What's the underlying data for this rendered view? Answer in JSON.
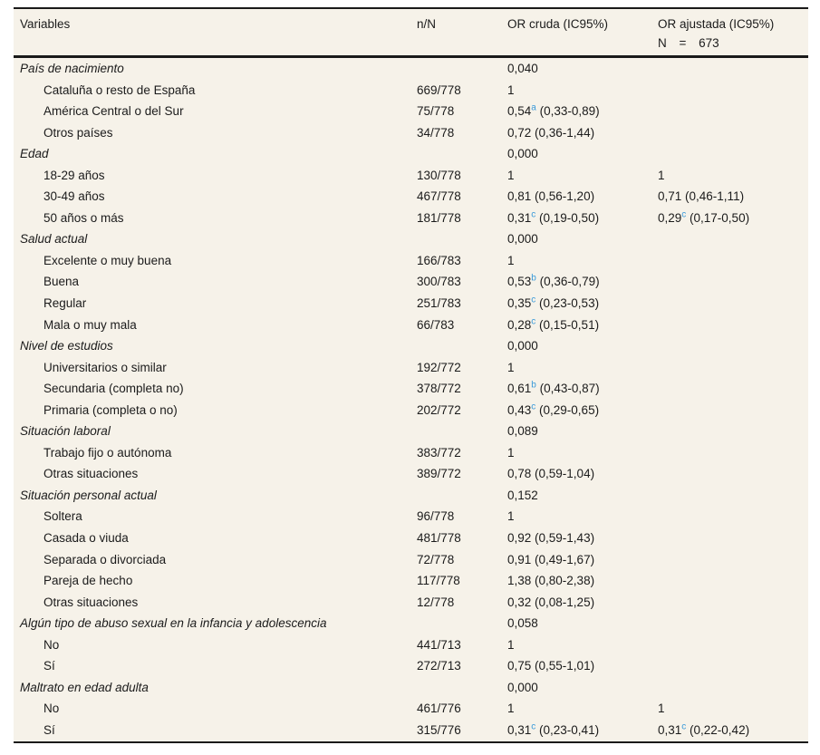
{
  "table": {
    "background": "#f6f2e9",
    "rule_color": "#1a1a1a",
    "text_color": "#1b1b1b",
    "superscript_color": "#3a9ad9",
    "header": {
      "variables": "Variables",
      "n_over_N": "n/N",
      "or_cruda": "OR cruda (IC95%)",
      "or_ajustada_line1": "OR ajustada (IC95%)",
      "or_ajustada_line2": "N = 673"
    },
    "rows": [
      {
        "type": "group",
        "label": "País de nacimiento",
        "p": "0,040"
      },
      {
        "type": "item",
        "label": "Cataluña o resto de España",
        "n": "669/778",
        "cruda": {
          "v": "1"
        }
      },
      {
        "type": "item",
        "label": "América Central o del Sur",
        "n": "75/778",
        "cruda": {
          "v": "0,54",
          "sup": "a",
          "ci": "(0,33-0,89)"
        }
      },
      {
        "type": "item",
        "label": "Otros países",
        "n": "34/778",
        "cruda": {
          "v": "0,72",
          "ci": "(0,36-1,44)"
        }
      },
      {
        "type": "group",
        "label": "Edad",
        "p": "0,000"
      },
      {
        "type": "item",
        "label": "18-29 años",
        "n": "130/778",
        "cruda": {
          "v": "1"
        },
        "ajustada": {
          "v": "1"
        }
      },
      {
        "type": "item",
        "label": "30-49 años",
        "n": "467/778",
        "cruda": {
          "v": "0,81",
          "ci": "(0,56-1,20)"
        },
        "ajustada": {
          "v": "0,71",
          "ci": "(0,46-1,11)"
        }
      },
      {
        "type": "item",
        "label": "50 años o más",
        "n": "181/778",
        "cruda": {
          "v": "0,31",
          "sup": "c",
          "ci": "(0,19-0,50)"
        },
        "ajustada": {
          "v": "0,29",
          "sup": "c",
          "ci": "(0,17-0,50)"
        }
      },
      {
        "type": "group",
        "label": "Salud actual",
        "p": "0,000"
      },
      {
        "type": "item",
        "label": "Excelente o muy buena",
        "n": "166/783",
        "cruda": {
          "v": "1"
        }
      },
      {
        "type": "item",
        "label": "Buena",
        "n": "300/783",
        "cruda": {
          "v": "0,53",
          "sup": "b",
          "ci": "(0,36-0,79)"
        }
      },
      {
        "type": "item",
        "label": "Regular",
        "n": "251/783",
        "cruda": {
          "v": "0,35",
          "sup": "c",
          "ci": "(0,23-0,53)"
        }
      },
      {
        "type": "item",
        "label": "Mala o muy mala",
        "n": "66/783",
        "cruda": {
          "v": "0,28",
          "sup": "c",
          "ci": "(0,15-0,51)"
        }
      },
      {
        "type": "group",
        "label": "Nivel de estudios",
        "p": "0,000"
      },
      {
        "type": "item",
        "label": "Universitarios o similar",
        "n": "192/772",
        "cruda": {
          "v": "1"
        }
      },
      {
        "type": "item",
        "label": "Secundaria (completa no)",
        "n": "378/772",
        "cruda": {
          "v": "0,61",
          "sup": "b",
          "ci": "(0,43-0,87)"
        }
      },
      {
        "type": "item",
        "label": "Primaria (completa o no)",
        "n": "202/772",
        "cruda": {
          "v": "0,43",
          "sup": "c",
          "ci": "(0,29-0,65)"
        }
      },
      {
        "type": "group",
        "label": "Situación laboral",
        "p": "0,089"
      },
      {
        "type": "item",
        "label": "Trabajo fijo o autónoma",
        "n": "383/772",
        "cruda": {
          "v": "1"
        }
      },
      {
        "type": "item",
        "label": "Otras situaciones",
        "n": "389/772",
        "cruda": {
          "v": "0,78",
          "ci": "(0,59-1,04)"
        }
      },
      {
        "type": "group",
        "label": "Situación personal actual",
        "p": "0,152"
      },
      {
        "type": "item",
        "label": "Soltera",
        "n": "96/778",
        "cruda": {
          "v": "1"
        }
      },
      {
        "type": "item",
        "label": "Casada o viuda",
        "n": "481/778",
        "cruda": {
          "v": "0,92",
          "ci": "(0,59-1,43)"
        }
      },
      {
        "type": "item",
        "label": "Separada o divorciada",
        "n": "72/778",
        "cruda": {
          "v": "0,91",
          "ci": "(0,49-1,67)"
        }
      },
      {
        "type": "item",
        "label": "Pareja de hecho",
        "n": "117/778",
        "cruda": {
          "v": "1,38",
          "ci": "(0,80-2,38)"
        }
      },
      {
        "type": "item",
        "label": "Otras situaciones",
        "n": "12/778",
        "cruda": {
          "v": "0,32",
          "ci": "(0,08-1,25)"
        }
      },
      {
        "type": "group",
        "label": "Algún tipo de abuso sexual en la infancia y adolescencia",
        "p": "0,058"
      },
      {
        "type": "item",
        "label": "No",
        "n": "441/713",
        "cruda": {
          "v": "1"
        }
      },
      {
        "type": "item",
        "label": "Sí",
        "n": "272/713",
        "cruda": {
          "v": "0,75",
          "ci": "(0,55-1,01)"
        }
      },
      {
        "type": "group",
        "label": "Maltrato en edad adulta",
        "p": "0,000"
      },
      {
        "type": "item",
        "label": "No",
        "n": "461/776",
        "cruda": {
          "v": "1"
        },
        "ajustada": {
          "v": "1"
        }
      },
      {
        "type": "item",
        "label": "Sí",
        "n": "315/776",
        "cruda": {
          "v": "0,31",
          "sup": "c",
          "ci": "(0,23-0,41)"
        },
        "ajustada": {
          "v": "0,31",
          "sup": "c",
          "ci": "(0,22-0,42)"
        }
      }
    ]
  }
}
